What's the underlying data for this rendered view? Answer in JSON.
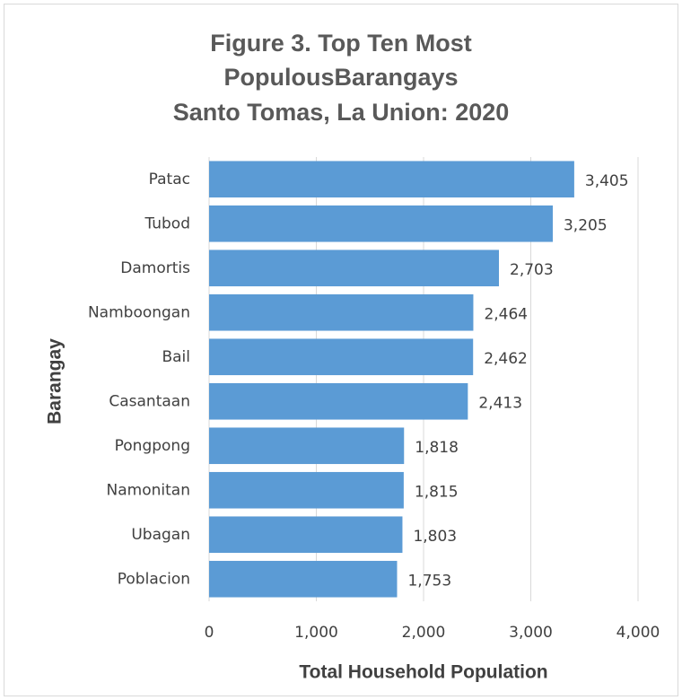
{
  "chart_data": {
    "type": "bar",
    "orientation": "horizontal",
    "title": [
      "Figure 3. Top Ten Most",
      "PopulousBarangays",
      "Santo Tomas, La Union: 2020"
    ],
    "x_label": "Total Household Population",
    "y_label": "Barangay",
    "categories": [
      "Patac",
      "Tubod",
      "Damortis",
      "Namboongan",
      "Bail",
      "Casantaan",
      "Pongpong",
      "Namonitan",
      "Ubagan",
      "Poblacion"
    ],
    "values": [
      3405,
      3205,
      2703,
      2464,
      2462,
      2413,
      1818,
      1815,
      1803,
      1753
    ],
    "value_labels": [
      "3,405",
      "3,205",
      "2,703",
      "2,464",
      "2,462",
      "2,413",
      "1,818",
      "1,815",
      "1,803",
      "1,753"
    ],
    "color": "#5b9bd5",
    "xlim": [
      0,
      4000
    ],
    "xticks": [
      0,
      {
        "value": 1000,
        "label": "1,000"
      },
      {
        "value": 2000,
        "label": "2,000"
      },
      {
        "value": 3000,
        "label": "3,000"
      },
      {
        "value": 4000,
        "label": "4,000"
      }
    ],
    "grid": true
  }
}
